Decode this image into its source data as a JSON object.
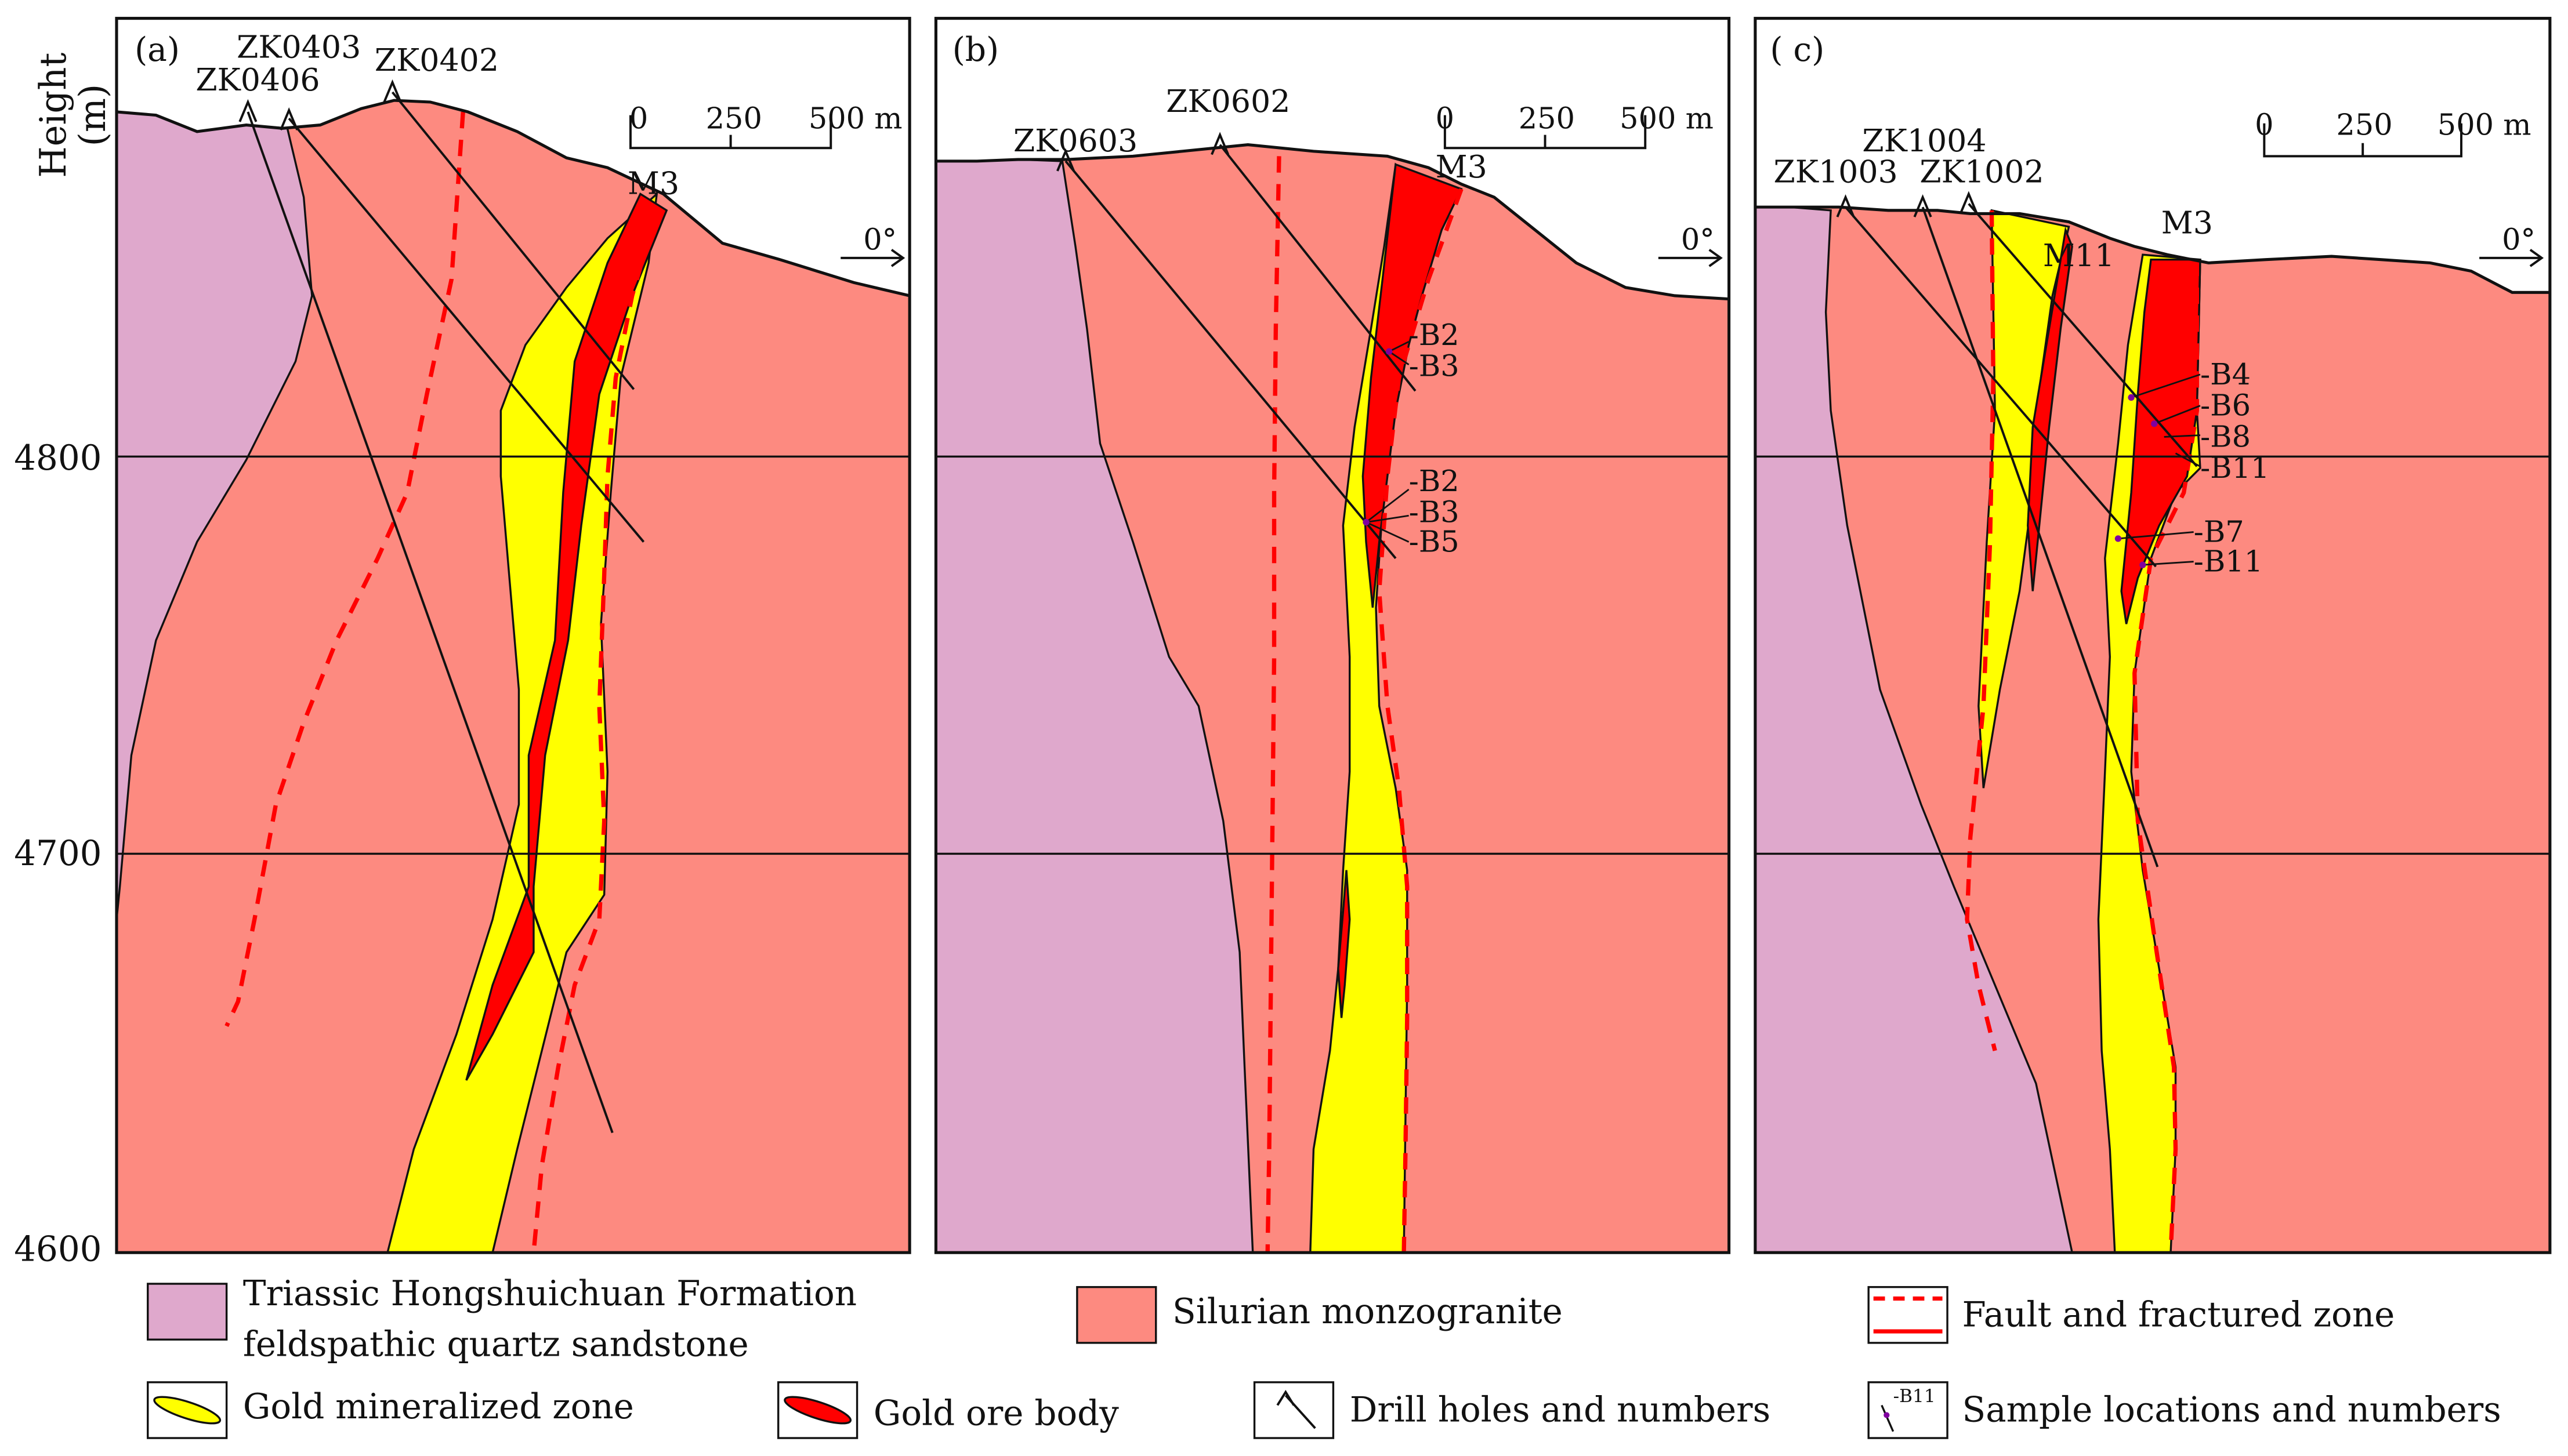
{
  "colors": {
    "sandstone": "#dfa8cc",
    "monzogranite": "#fd8a80",
    "mineralized_zone": "#ffff00",
    "ore_body": "#ff0000",
    "fault": "#ff0000",
    "outline": "#111111"
  },
  "axis": {
    "title": "Height",
    "unit": "(m)",
    "ticks": [
      "4800",
      "4700",
      "4600"
    ]
  },
  "panels": [
    {
      "id": "(a)",
      "drill_holes": [
        "ZK0403",
        "ZK0406",
        "ZK0402"
      ],
      "ore_body_label": "M3",
      "samples": [],
      "scale": {
        "ticks": [
          "0",
          "250",
          "500 m"
        ]
      },
      "dip_label": "0°"
    },
    {
      "id": "(b)",
      "drill_holes": [
        "ZK0603",
        "ZK0602"
      ],
      "ore_body_label": "M3",
      "samples": [
        "-B2",
        "-B3",
        "-B2",
        "-B3",
        "-B5"
      ],
      "scale": {
        "ticks": [
          "0",
          "250",
          "500 m"
        ]
      },
      "dip_label": "0°"
    },
    {
      "id": "( c)",
      "drill_holes": [
        "ZK1004",
        "ZK1003",
        "ZK1002"
      ],
      "ore_body_labels": [
        "M11",
        "M3"
      ],
      "samples": [
        "-B4",
        "-B6",
        "-B8",
        "-B11",
        "-B7",
        "-B11"
      ],
      "scale": {
        "ticks": [
          "0",
          "250",
          "500 m"
        ]
      },
      "dip_label": "0°"
    }
  ],
  "legend": {
    "sandstone_line1": "Triassic Hongshuichuan Formation",
    "sandstone_line2": "feldspathic quartz sandstone",
    "monzogranite": "Silurian monzogranite",
    "fault": "Fault and fractured zone",
    "mineralized_zone": "Gold mineralized zone",
    "ore_body": "Gold ore body",
    "drill_holes": "Drill holes and numbers",
    "samples": "Sample locations and numbers",
    "sample_icon_text": "-B11"
  }
}
